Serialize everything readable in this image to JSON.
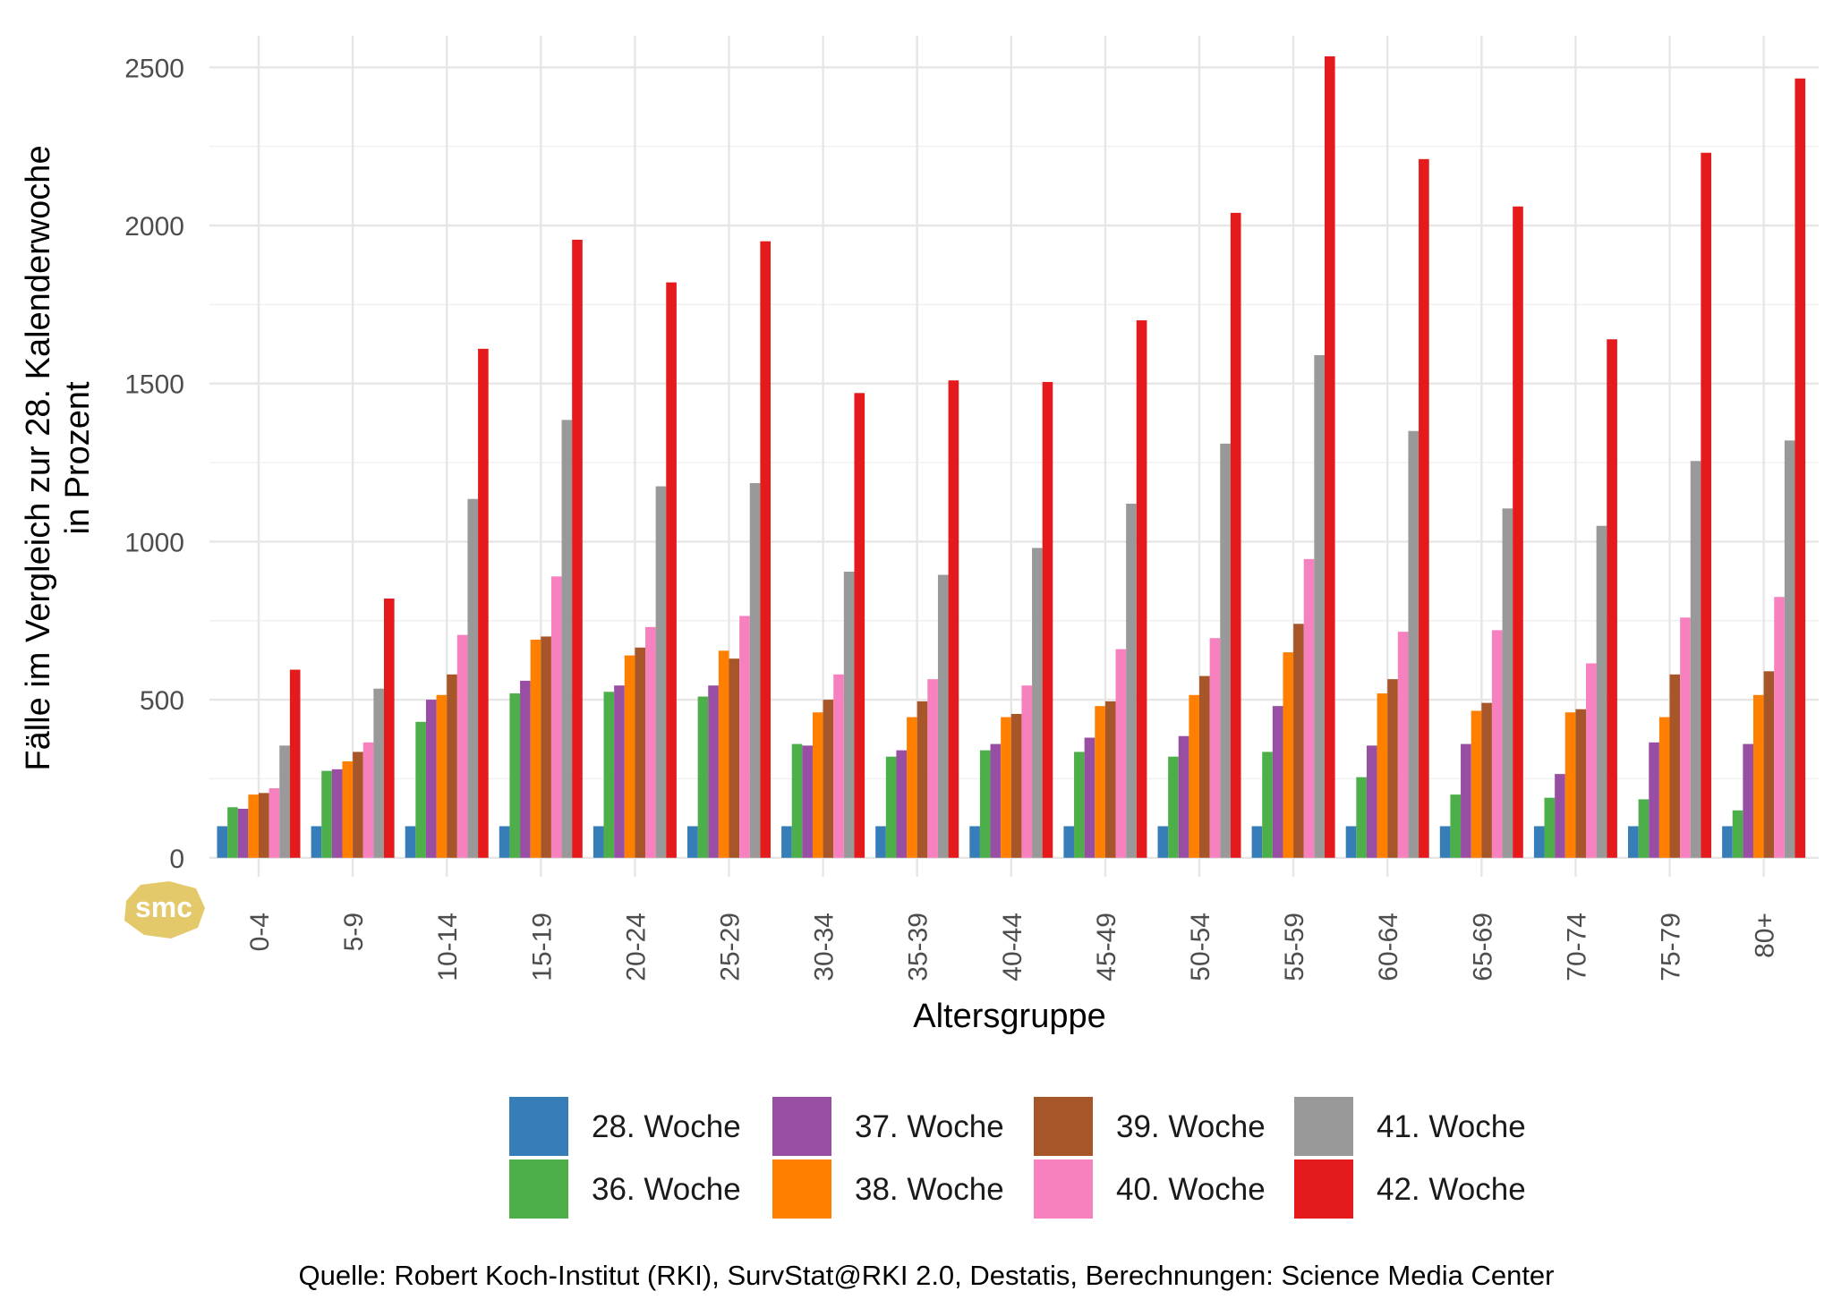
{
  "chart_data": {
    "type": "bar",
    "xlabel": "Altersgruppe",
    "ylabel_line1": "Fälle im Vergleich zur 28. Kalenderwoche",
    "ylabel_line2": "in Prozent",
    "caption": "Quelle: Robert Koch-Institut (RKI), SurvStat@RKI 2.0, Destatis, Berechnungen: Science Media Center",
    "logo_text": "smc",
    "ylim": [
      -60,
      2600
    ],
    "yticks": [
      0,
      500,
      1000,
      1500,
      2000,
      2500
    ],
    "grid": true,
    "legend_position": "bottom",
    "categories": [
      "0-4",
      "5-9",
      "10-14",
      "15-19",
      "20-24",
      "25-29",
      "30-34",
      "35-39",
      "40-44",
      "45-49",
      "50-54",
      "55-59",
      "60-64",
      "65-69",
      "70-74",
      "75-79",
      "80+"
    ],
    "series": [
      {
        "name": "28. Woche",
        "color": "#377eb8",
        "values": [
          100,
          100,
          100,
          100,
          100,
          100,
          100,
          100,
          100,
          100,
          100,
          100,
          100,
          100,
          100,
          100,
          100
        ]
      },
      {
        "name": "36. Woche",
        "color": "#4daf4a",
        "values": [
          160,
          275,
          430,
          520,
          525,
          510,
          360,
          320,
          340,
          335,
          320,
          335,
          255,
          200,
          190,
          185,
          150
        ]
      },
      {
        "name": "37. Woche",
        "color": "#984ea3",
        "values": [
          155,
          280,
          500,
          560,
          545,
          545,
          355,
          340,
          360,
          380,
          385,
          480,
          355,
          360,
          265,
          365,
          360
        ]
      },
      {
        "name": "38. Woche",
        "color": "#ff7f00",
        "values": [
          200,
          305,
          515,
          690,
          640,
          655,
          460,
          445,
          445,
          480,
          515,
          650,
          520,
          465,
          460,
          445,
          515
        ]
      },
      {
        "name": "39. Woche",
        "color": "#a65628",
        "values": [
          205,
          335,
          580,
          700,
          665,
          630,
          500,
          495,
          455,
          495,
          575,
          740,
          565,
          490,
          470,
          580,
          590
        ]
      },
      {
        "name": "40. Woche",
        "color": "#f781bf",
        "values": [
          220,
          365,
          705,
          890,
          730,
          765,
          580,
          565,
          545,
          660,
          695,
          945,
          715,
          720,
          615,
          760,
          825
        ]
      },
      {
        "name": "41. Woche",
        "color": "#999999",
        "values": [
          355,
          535,
          1135,
          1385,
          1175,
          1185,
          905,
          895,
          980,
          1120,
          1310,
          1590,
          1350,
          1105,
          1050,
          1255,
          1320
        ]
      },
      {
        "name": "42. Woche",
        "color": "#e41a1c",
        "values": [
          595,
          820,
          1610,
          1955,
          1820,
          1950,
          1470,
          1510,
          1505,
          1700,
          2040,
          2535,
          2210,
          2060,
          1640,
          2230,
          2465
        ]
      }
    ]
  }
}
